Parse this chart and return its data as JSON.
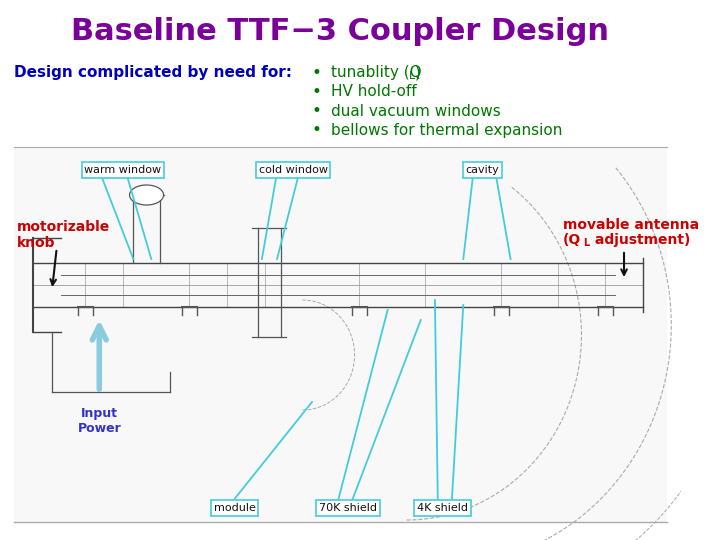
{
  "title": "Baseline TTF−3 Coupler Design",
  "title_color": "#7B0099",
  "title_fontsize": 22,
  "subtitle": "Design complicated by need for:",
  "subtitle_color": "#0000BB",
  "subtitle_fontsize": 11,
  "bullet_color": "#007700",
  "bullet_fontsize": 11,
  "bullets": [
    "tunablity (Q",
    "HV hold-off",
    "dual vacuum windows",
    "bellows for thermal expansion"
  ],
  "label_motorizable": "motorizable\nknob",
  "label_motorizable_color": "#CC0000",
  "label_movable_line1": "movable antenna",
  "label_movable_line2": "(Q",
  "label_movable_line2b": " adjustment)",
  "label_movable_color": "#CC0000",
  "label_input_power": "Input\nPower",
  "label_input_power_color": "#3333CC",
  "label_warm_window": "warm window",
  "label_cold_window": "cold window",
  "label_cavity": "cavity",
  "label_module": "module",
  "label_70k": "70K shield",
  "label_4k": "4K shield",
  "bg_color": "#FFFFFF",
  "cyan_color": "#44CCDD",
  "box_edge_color": "#44CCDD",
  "arrow_color": "#000000",
  "sep_color": "#AAAAAA"
}
